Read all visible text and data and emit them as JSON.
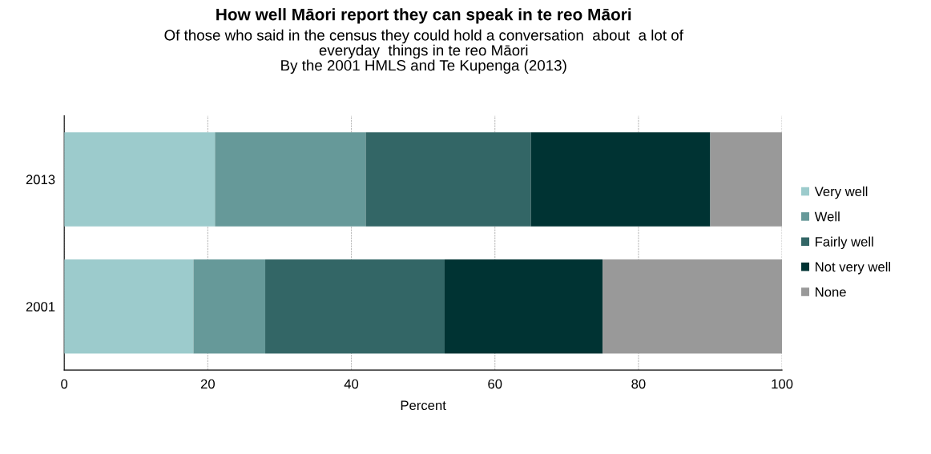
{
  "chart_data": {
    "type": "bar",
    "orientation": "horizontal",
    "stacked": true,
    "title": "How well Māori report they can speak in te reo Māori",
    "subtitle": "Of those who said in the census they could hold a conversation  about  a lot of\neveryday  things in te reo Māori\nBy the 2001 HMLS and Te Kupenga (2013)",
    "xlabel": "Percent",
    "categories": [
      "2013",
      "2001"
    ],
    "series": [
      {
        "name": "Very well",
        "color": "#9ccbcc",
        "values": [
          21,
          18
        ]
      },
      {
        "name": "Well",
        "color": "#669999",
        "values": [
          21,
          10
        ]
      },
      {
        "name": "Fairly well",
        "color": "#336666",
        "values": [
          23,
          25
        ]
      },
      {
        "name": "Not very well",
        "color": "#003333",
        "values": [
          25,
          22
        ]
      },
      {
        "name": "None",
        "color": "#999999",
        "values": [
          10,
          25
        ]
      }
    ],
    "xlim": [
      0,
      100
    ],
    "xticks": [
      0,
      20,
      40,
      60,
      80,
      100
    ],
    "grid": "x",
    "legend": "right"
  }
}
